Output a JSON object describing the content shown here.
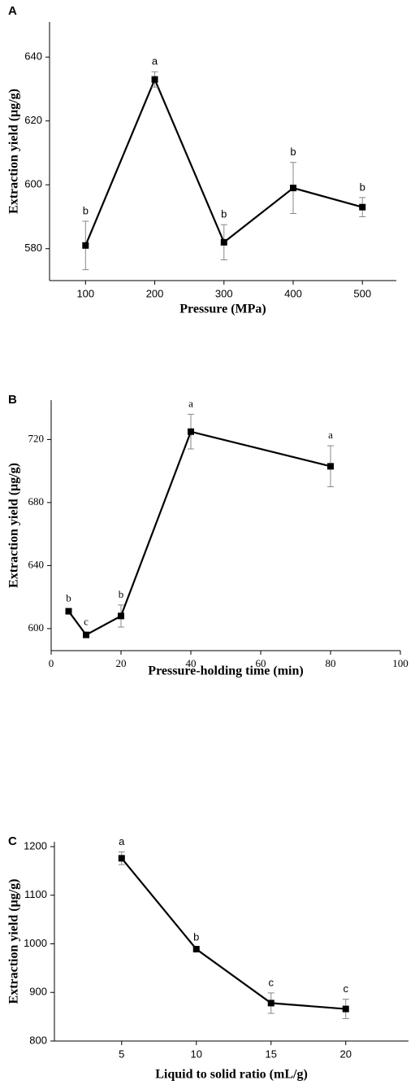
{
  "chart_data": [
    {
      "type": "line",
      "panel": "A",
      "xlabel": "Pressure (MPa)",
      "ylabel": "Extraction yield (μg/g)",
      "x": [
        100,
        200,
        300,
        400,
        500
      ],
      "values": [
        581,
        633,
        582,
        599,
        593
      ],
      "errors": [
        7.6,
        2.4,
        5.5,
        8,
        3
      ],
      "annotations": [
        "b",
        "a",
        "b",
        "b",
        "b"
      ],
      "color": "#000000",
      "xlim": [
        48,
        549
      ],
      "ylim": [
        570,
        651
      ],
      "xticks": [
        100,
        200,
        300,
        400,
        500
      ],
      "yticks": [
        580,
        600,
        620,
        640
      ]
    },
    {
      "type": "line",
      "panel": "B",
      "xlabel": "Pressure-holding time (min)",
      "ylabel": "Extraction yield (μg/g)",
      "x": [
        5,
        10,
        20,
        40,
        80
      ],
      "values": [
        611,
        596,
        608,
        725,
        703
      ],
      "errors": [
        1.5,
        1.5,
        7,
        11,
        13
      ],
      "annotations": [
        "b",
        "c",
        "b",
        "a",
        "a"
      ],
      "color": "#000000",
      "xlim": [
        0,
        100
      ],
      "ylim": [
        586,
        745
      ],
      "xticks": [
        0,
        20,
        40,
        60,
        80,
        100
      ],
      "yticks": [
        600,
        640,
        680,
        720
      ]
    },
    {
      "type": "line",
      "panel": "C",
      "xlabel": "Liquid to solid ratio (mL/g)",
      "ylabel": "Extraction yield (μg/g)",
      "x": [
        5,
        10,
        15,
        20
      ],
      "values": [
        1176,
        989,
        878,
        866
      ],
      "errors": [
        13,
        3,
        21,
        20
      ],
      "annotations": [
        "a",
        "b",
        "c",
        "c"
      ],
      "color": "#000000",
      "xlim": [
        0.5,
        24.2
      ],
      "ylim": [
        800,
        1210
      ],
      "xticks": [
        5,
        10,
        15,
        20
      ],
      "yticks": [
        800,
        900,
        1000,
        1100,
        1200
      ]
    }
  ]
}
